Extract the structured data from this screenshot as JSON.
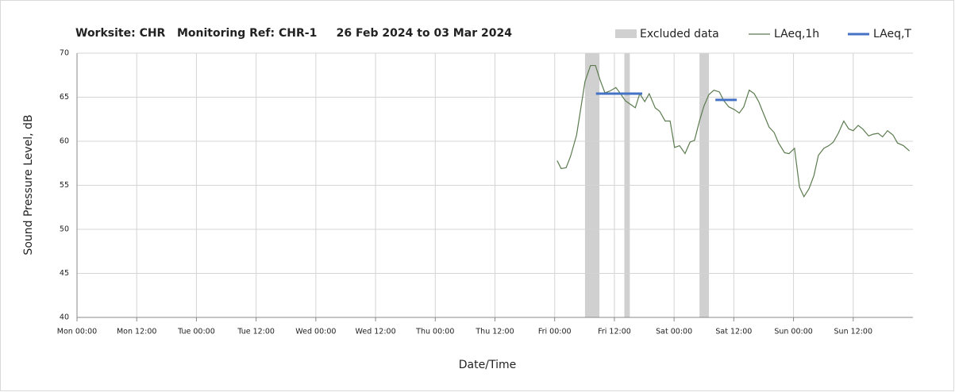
{
  "chart_data": {
    "type": "line",
    "title": "Worksite: CHR   Monitoring Ref: CHR-1     26 Feb 2024 to 03 Mar 2024",
    "xlabel": "Date/Time",
    "ylabel": "Sound Pressure Level, dB",
    "xlim": [
      0,
      168
    ],
    "xticks": [
      {
        "value": 0,
        "label": "Mon 00:00"
      },
      {
        "value": 12,
        "label": "Mon 12:00"
      },
      {
        "value": 24,
        "label": "Tue 00:00"
      },
      {
        "value": 36,
        "label": "Tue 12:00"
      },
      {
        "value": 48,
        "label": "Wed 00:00"
      },
      {
        "value": 60,
        "label": "Wed 12:00"
      },
      {
        "value": 72,
        "label": "Thu 00:00"
      },
      {
        "value": 84,
        "label": "Thu 12:00"
      },
      {
        "value": 96,
        "label": "Fri 00:00"
      },
      {
        "value": 108,
        "label": "Fri 12:00"
      },
      {
        "value": 120,
        "label": "Sat 00:00"
      },
      {
        "value": 132,
        "label": "Sat 12:00"
      },
      {
        "value": 144,
        "label": "Sun 00:00"
      },
      {
        "value": 156,
        "label": "Sun 12:00"
      }
    ],
    "ylim": [
      40,
      70
    ],
    "yticks": [
      40,
      45,
      50,
      55,
      60,
      65,
      70
    ],
    "grid": true,
    "excluded": {
      "name": "Excluded data",
      "color": "#d0d0d0",
      "ranges": [
        [
          102.1,
          105
        ],
        [
          110,
          111.1
        ],
        [
          125.1,
          127
        ]
      ]
    },
    "series": [
      {
        "name": "LAeq,1h",
        "color": "#5b7b4f",
        "x": [
          96.5,
          97.3,
          98.3,
          99.2,
          100.4,
          101.1,
          102.1,
          103.2,
          104.2,
          105.1,
          106.1,
          107.1,
          108.3,
          109.1,
          110.2,
          111.2,
          112.2,
          113.1,
          114.1,
          115.0,
          116.2,
          117.1,
          118.2,
          119.2,
          120.1,
          121.1,
          122.2,
          123.2,
          124.1,
          125.1,
          126.0,
          127.0,
          128.0,
          129.1,
          130.0,
          131.0,
          132.1,
          133.1,
          134.0,
          135.1,
          136.1,
          137.0,
          138.0,
          139.1,
          140.1,
          141.0,
          142.2,
          143.1,
          144.2,
          145.2,
          146.1,
          147.1,
          148.1,
          149.0,
          150.1,
          151.1,
          152.0,
          153.0,
          154.1,
          155.1,
          156.0,
          157.0,
          157.9,
          159.1,
          160.0,
          161.0,
          161.9,
          162.9,
          164.0,
          164.9,
          166.1,
          167.3
        ],
        "values": [
          57.8,
          56.9,
          57.0,
          58.3,
          60.7,
          63.2,
          66.8,
          68.6,
          68.6,
          67.0,
          65.5,
          65.7,
          66.1,
          65.5,
          64.6,
          64.2,
          63.8,
          65.4,
          64.5,
          65.4,
          63.8,
          63.4,
          62.3,
          62.3,
          59.3,
          59.5,
          58.6,
          59.9,
          60.1,
          62.3,
          64.0,
          65.3,
          65.8,
          65.6,
          64.6,
          63.9,
          63.6,
          63.2,
          63.9,
          65.8,
          65.4,
          64.5,
          63.1,
          61.6,
          61.0,
          59.8,
          58.7,
          58.6,
          59.2,
          54.8,
          53.7,
          54.6,
          56.1,
          58.4,
          59.2,
          59.5,
          59.9,
          60.9,
          62.3,
          61.4,
          61.2,
          61.8,
          61.4,
          60.6,
          60.8,
          60.9,
          60.5,
          61.2,
          60.7,
          59.8,
          59.5,
          58.9
        ]
      },
      {
        "name": "LAeq,T",
        "color": "#4472c4",
        "segments": [
          {
            "x": [
              104.3,
              113.6
            ],
            "values": [
              65.4,
              65.4
            ]
          },
          {
            "x": [
              128.3,
              132.6
            ],
            "values": [
              64.7,
              64.7
            ]
          }
        ]
      }
    ]
  }
}
